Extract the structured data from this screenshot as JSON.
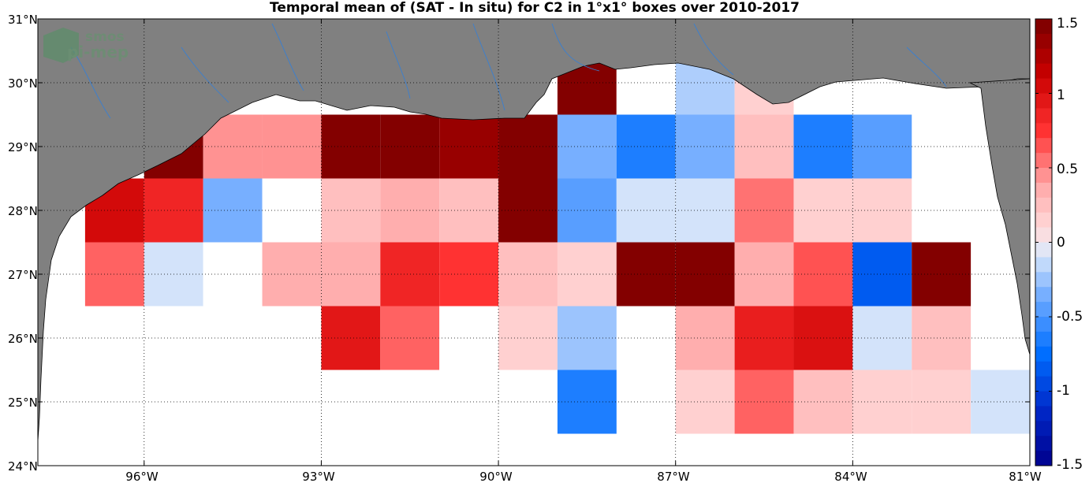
{
  "title": "Temporal mean of (SAT - In situ) for C2 in 1°x1° boxes over 2010-2017",
  "logo": {
    "line1": "smos",
    "line2": "pi-mep"
  },
  "colors": {
    "land": "#808080",
    "ocean": "#ffffff",
    "rivers": "#3a7fd0",
    "grid": "#000000"
  },
  "lat_labels": [
    "31°N",
    "30°N",
    "29°N",
    "28°N",
    "27°N",
    "26°N",
    "25°N",
    "24°N"
  ],
  "lon_labels": [
    "96°W",
    "93°W",
    "90°W",
    "87°W",
    "84°W",
    "81°W"
  ],
  "colorbar": {
    "min": -1.5,
    "max": 1.5,
    "steps": 30,
    "tick_labels": [
      "1.5",
      "1",
      "0.5",
      "0",
      "-0.5",
      "-1",
      "-1.5"
    ],
    "tick_values": [
      1.5,
      1,
      0.5,
      0,
      -0.5,
      -1,
      -1.5
    ]
  },
  "chart_data": {
    "type": "heatmap",
    "title": "Temporal mean of (SAT - In situ) for C2 in 1°x1° boxes over 2010-2017",
    "xlim": [
      -97.8,
      -81
    ],
    "ylim": [
      24,
      31
    ],
    "cell_size_deg": 1,
    "cells": [
      {
        "lon": -88.5,
        "lat": 30,
        "value": 1.45
      },
      {
        "lon": -87.5,
        "lat": 30,
        "value": 0
      },
      {
        "lon": -86.5,
        "lat": 30,
        "value": -0.2
      },
      {
        "lon": -85.5,
        "lat": 30,
        "value": 0.15
      },
      {
        "lon": -95.5,
        "lat": 29,
        "value": 1.45
      },
      {
        "lon": -94.5,
        "lat": 29,
        "value": 0.45
      },
      {
        "lon": -93.5,
        "lat": 29,
        "value": 0.45
      },
      {
        "lon": -92.5,
        "lat": 29,
        "value": 1.45
      },
      {
        "lon": -91.5,
        "lat": 29,
        "value": 1.45
      },
      {
        "lon": -90.5,
        "lat": 29,
        "value": 1.35
      },
      {
        "lon": -89.5,
        "lat": 29,
        "value": 1.45
      },
      {
        "lon": -88.5,
        "lat": 29,
        "value": -0.35
      },
      {
        "lon": -87.5,
        "lat": 29,
        "value": -0.65
      },
      {
        "lon": -86.5,
        "lat": 29,
        "value": -0.35
      },
      {
        "lon": -85.5,
        "lat": 29,
        "value": 0.25
      },
      {
        "lon": -84.5,
        "lat": 29,
        "value": -0.65
      },
      {
        "lon": -83.5,
        "lat": 29,
        "value": -0.45
      },
      {
        "lon": -96.5,
        "lat": 28,
        "value": 1.05
      },
      {
        "lon": -95.5,
        "lat": 28,
        "value": 0.85
      },
      {
        "lon": -94.5,
        "lat": 28,
        "value": -0.35
      },
      {
        "lon": -93.5,
        "lat": 28,
        "value": 0
      },
      {
        "lon": -92.5,
        "lat": 28,
        "value": 0.25
      },
      {
        "lon": -91.5,
        "lat": 28,
        "value": 0.35
      },
      {
        "lon": -90.5,
        "lat": 28,
        "value": 0.25
      },
      {
        "lon": -89.5,
        "lat": 28,
        "value": 1.45
      },
      {
        "lon": -88.5,
        "lat": 28,
        "value": -0.45
      },
      {
        "lon": -87.5,
        "lat": 28,
        "value": -0.1
      },
      {
        "lon": -86.5,
        "lat": 28,
        "value": -0.1
      },
      {
        "lon": -85.5,
        "lat": 28,
        "value": 0.55
      },
      {
        "lon": -84.5,
        "lat": 28,
        "value": 0.15
      },
      {
        "lon": -83.5,
        "lat": 28,
        "value": 0.15
      },
      {
        "lon": -96.5,
        "lat": 27,
        "value": 0.6
      },
      {
        "lon": -95.5,
        "lat": 27,
        "value": -0.1
      },
      {
        "lon": -94.5,
        "lat": 27,
        "value": 0
      },
      {
        "lon": -93.5,
        "lat": 27,
        "value": 0.35
      },
      {
        "lon": -92.5,
        "lat": 27,
        "value": 0.35
      },
      {
        "lon": -91.5,
        "lat": 27,
        "value": 0.85
      },
      {
        "lon": -90.5,
        "lat": 27,
        "value": 0.75
      },
      {
        "lon": -89.5,
        "lat": 27,
        "value": 0.25
      },
      {
        "lon": -88.5,
        "lat": 27,
        "value": 0.15
      },
      {
        "lon": -87.5,
        "lat": 27,
        "value": 1.45
      },
      {
        "lon": -86.5,
        "lat": 27,
        "value": 1.45
      },
      {
        "lon": -85.5,
        "lat": 27,
        "value": 0.35
      },
      {
        "lon": -84.5,
        "lat": 27,
        "value": 0.65
      },
      {
        "lon": -83.5,
        "lat": 27,
        "value": -0.85
      },
      {
        "lon": -82.5,
        "lat": 27,
        "value": 1.45
      },
      {
        "lon": -92.5,
        "lat": 26,
        "value": 0.95
      },
      {
        "lon": -91.5,
        "lat": 26,
        "value": 0.6
      },
      {
        "lon": -90.5,
        "lat": 26,
        "value": 0
      },
      {
        "lon": -89.5,
        "lat": 26,
        "value": 0.15
      },
      {
        "lon": -88.5,
        "lat": 26,
        "value": -0.25
      },
      {
        "lon": -86.5,
        "lat": 26,
        "value": 0.35
      },
      {
        "lon": -85.5,
        "lat": 26,
        "value": 0.9
      },
      {
        "lon": -84.5,
        "lat": 26,
        "value": 1.0
      },
      {
        "lon": -83.5,
        "lat": 26,
        "value": -0.1
      },
      {
        "lon": -82.5,
        "lat": 26,
        "value": 0.25
      },
      {
        "lon": -88.5,
        "lat": 25,
        "value": -0.65
      },
      {
        "lon": -86.5,
        "lat": 25,
        "value": 0.15
      },
      {
        "lon": -85.5,
        "lat": 25,
        "value": 0.6
      },
      {
        "lon": -84.5,
        "lat": 25,
        "value": 0.25
      },
      {
        "lon": -83.5,
        "lat": 25,
        "value": 0.15
      },
      {
        "lon": -82.5,
        "lat": 25,
        "value": 0.15
      },
      {
        "lon": -81.5,
        "lat": 25,
        "value": -0.1
      }
    ]
  }
}
